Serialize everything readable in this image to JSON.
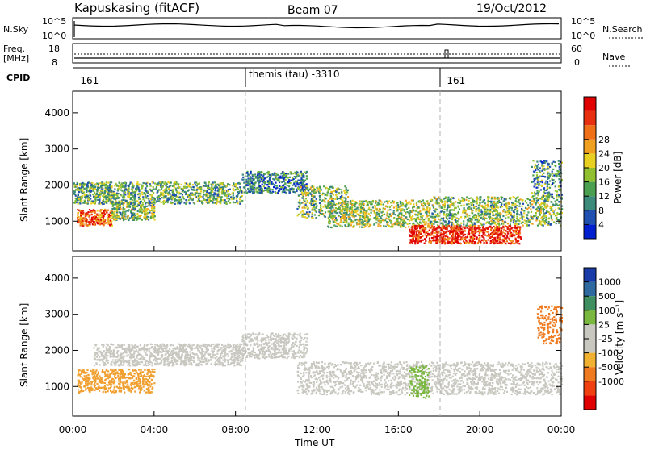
{
  "header": {
    "site": "Kapuskasing (fitACF)",
    "beam": "Beam 07",
    "date": "19/Oct/2012"
  },
  "strip_nsky": {
    "label": "N.Sky",
    "ticks": [
      "10^5",
      "10^0"
    ],
    "right_label": "N.Search",
    "right_ticks": [
      "10^5",
      "10^0"
    ]
  },
  "strip_freq": {
    "label_line1": "Freq.",
    "label_line2": "[MHz]",
    "ticks": [
      "18",
      "8"
    ],
    "right_label": "Nave",
    "right_ticks": [
      "60",
      "0"
    ]
  },
  "cpid": {
    "label": "CPID",
    "segments": [
      {
        "start_h": 0,
        "end_h": 8.3,
        "label": "-161"
      },
      {
        "start_h": 8.3,
        "end_h": 18.1,
        "label": "themis (tau) -3310"
      },
      {
        "start_h": 18.1,
        "end_h": 24,
        "label": "-161"
      }
    ]
  },
  "chart_data": [
    {
      "type": "heatmap",
      "panel": "power",
      "ylabel": "Slant Range [km]",
      "yticks": [
        "1000",
        "2000",
        "3000",
        "4000"
      ],
      "ylim": [
        180,
        4600
      ],
      "xlim": [
        0,
        24
      ],
      "colorbar_label": "Power [dB]",
      "colorbar_ticks": [
        "4",
        "8",
        "12",
        "16",
        "20",
        "24",
        "28"
      ],
      "colors": [
        "#0020d0",
        "#2050b0",
        "#3c8a7a",
        "#4aa050",
        "#90c030",
        "#e8d020",
        "#f0a020",
        "#f07018",
        "#e83010",
        "#e00000"
      ],
      "blobs": [
        {
          "t0": 0.2,
          "t1": 1.9,
          "r0": 900,
          "r1": 1350,
          "level": 0.8
        },
        {
          "t0": 1.9,
          "t1": 4.0,
          "r0": 1050,
          "r1": 1550,
          "level": 0.4
        },
        {
          "t0": 0.0,
          "t1": 8.3,
          "r0": 1500,
          "r1": 2100,
          "level": 0.35
        },
        {
          "t0": 8.3,
          "t1": 11.5,
          "r0": 1800,
          "r1": 2400,
          "level": 0.25
        },
        {
          "t0": 11.0,
          "t1": 13.5,
          "r0": 1100,
          "r1": 2000,
          "level": 0.4
        },
        {
          "t0": 12.5,
          "t1": 17.5,
          "r0": 850,
          "r1": 1600,
          "level": 0.45
        },
        {
          "t0": 16.5,
          "t1": 22.0,
          "r0": 400,
          "r1": 900,
          "level": 0.9
        },
        {
          "t0": 17.5,
          "t1": 24.0,
          "r0": 900,
          "r1": 1700,
          "level": 0.4
        },
        {
          "t0": 22.5,
          "t1": 24.0,
          "r0": 1700,
          "r1": 2700,
          "level": 0.3
        }
      ]
    },
    {
      "type": "heatmap",
      "panel": "velocity",
      "ylabel": "Slant Range [km]",
      "yticks": [
        "1000",
        "2000",
        "3000",
        "4000"
      ],
      "ylim": [
        180,
        4600
      ],
      "xlim": [
        0,
        24
      ],
      "xticks": [
        "00:00",
        "04:00",
        "08:00",
        "12:00",
        "16:00",
        "20:00",
        "00:00"
      ],
      "xlabel": "Time UT",
      "colorbar_label": "Velocity [m s⁻¹]",
      "colorbar_ticks": [
        "1000",
        "500",
        "100",
        "25",
        "-25",
        "-100",
        "-500",
        "-1000"
      ],
      "colors": [
        "#1a3ca8",
        "#2e6aa0",
        "#3f8f60",
        "#7ab840",
        "#c8c8c0",
        "#c8c8c0",
        "#f0b030",
        "#f07a20",
        "#f04010",
        "#e00000"
      ],
      "blobs": [
        {
          "t0": 0.2,
          "t1": 4.0,
          "r0": 850,
          "r1": 1500,
          "color": "#f0a030"
        },
        {
          "t0": 1.0,
          "t1": 8.3,
          "r0": 1600,
          "r1": 2200,
          "color": "#c8c8c0"
        },
        {
          "t0": 8.3,
          "t1": 11.5,
          "r0": 1800,
          "r1": 2500,
          "color": "#c8c8c0"
        },
        {
          "t0": 11.0,
          "t1": 24.0,
          "r0": 800,
          "r1": 1700,
          "color": "#c8c8c0"
        },
        {
          "t0": 16.5,
          "t1": 17.5,
          "r0": 700,
          "r1": 1600,
          "color": "#7ab840"
        },
        {
          "t0": 22.8,
          "t1": 24.0,
          "r0": 2200,
          "r1": 3300,
          "color": "#f07a20"
        }
      ]
    }
  ],
  "colors": {
    "axis": "#000000",
    "dashed_marker": "#b0b0b0",
    "ground_scatter": "#c8c8c0"
  }
}
